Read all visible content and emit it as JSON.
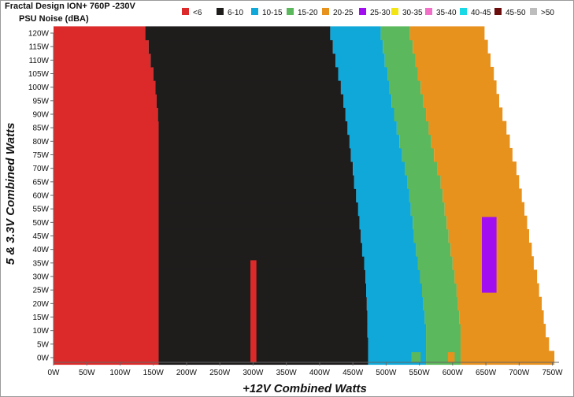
{
  "chart_data": {
    "type": "heatmap",
    "title": "Fractal Design ION+ 760P -230V",
    "subtitle": "PSU Noise (dBA)",
    "xlabel": "+12V Combined Watts",
    "ylabel": "5 & 3.3V Combined Watts",
    "x_unit_label": "W",
    "xlim": [
      0,
      760
    ],
    "ylim": [
      0,
      120
    ],
    "x_ticks": [
      {
        "value": 0,
        "label": "0W"
      },
      {
        "value": 50,
        "label": "50W"
      },
      {
        "value": 100,
        "label": "100W"
      },
      {
        "value": 150,
        "label": "150W"
      },
      {
        "value": 200,
        "label": "200W"
      },
      {
        "value": 250,
        "label": "250W"
      },
      {
        "value": 300,
        "label": "300W"
      },
      {
        "value": 350,
        "label": "350W"
      },
      {
        "value": 400,
        "label": "400W"
      },
      {
        "value": 450,
        "label": "450W"
      },
      {
        "value": 500,
        "label": "500W"
      },
      {
        "value": 550,
        "label": "550W"
      },
      {
        "value": 600,
        "label": "600W"
      },
      {
        "value": 650,
        "label": "650W"
      },
      {
        "value": 700,
        "label": "700W"
      },
      {
        "value": 750,
        "label": "750W"
      }
    ],
    "y_ticks": [
      {
        "value": 0,
        "label": "0W"
      },
      {
        "value": 5,
        "label": "5W"
      },
      {
        "value": 10,
        "label": "10W"
      },
      {
        "value": 15,
        "label": "15W"
      },
      {
        "value": 20,
        "label": "20W"
      },
      {
        "value": 25,
        "label": "25W"
      },
      {
        "value": 30,
        "label": "30W"
      },
      {
        "value": 35,
        "label": "35W"
      },
      {
        "value": 40,
        "label": "40W"
      },
      {
        "value": 45,
        "label": "45W"
      },
      {
        "value": 50,
        "label": "50W"
      },
      {
        "value": 55,
        "label": "55W"
      },
      {
        "value": 60,
        "label": "60W"
      },
      {
        "value": 65,
        "label": "65W"
      },
      {
        "value": 70,
        "label": "70W"
      },
      {
        "value": 75,
        "label": "75W"
      },
      {
        "value": 80,
        "label": "80W"
      },
      {
        "value": 85,
        "label": "85W"
      },
      {
        "value": 90,
        "label": "90W"
      },
      {
        "value": 95,
        "label": "95W"
      },
      {
        "value": 100,
        "label": "100W"
      },
      {
        "value": 105,
        "label": "105W"
      },
      {
        "value": 110,
        "label": "110W"
      },
      {
        "value": 115,
        "label": "115W"
      },
      {
        "value": 120,
        "label": "120W"
      }
    ],
    "legend_position": "top",
    "bands": [
      {
        "label": "<6",
        "color": "#dc2a2a"
      },
      {
        "label": "6-10",
        "color": "#1f1c1c"
      },
      {
        "label": "10-15",
        "color": "#10a8d8"
      },
      {
        "label": "15-20",
        "color": "#5cb85c"
      },
      {
        "label": "20-25",
        "color": "#e8921e"
      },
      {
        "label": "25-30",
        "color": "#a10ef0"
      },
      {
        "label": "30-35",
        "color": "#f2e513"
      },
      {
        "label": "35-40",
        "color": "#f26fc8"
      },
      {
        "label": "40-45",
        "color": "#1ad9e6"
      },
      {
        "label": "45-50",
        "color": "#6b0d0d"
      },
      {
        "label": ">50",
        "color": "#bdbdbd"
      }
    ],
    "y_levels": [
      0,
      5,
      10,
      15,
      20,
      25,
      30,
      35,
      40,
      45,
      50,
      55,
      60,
      65,
      70,
      75,
      80,
      85,
      90,
      95,
      100,
      105,
      110,
      115,
      120
    ],
    "boundaries_note": "per y level: x (W) where each band ends",
    "band_edges": {
      "lt6_end": [
        158,
        158,
        158,
        158,
        158,
        158,
        158,
        158,
        158,
        158,
        158,
        158,
        158,
        158,
        158,
        158,
        158,
        158,
        157,
        155,
        153,
        150,
        146,
        143,
        138
      ],
      "b6_10_end": [
        473,
        473,
        472,
        472,
        471,
        470,
        469,
        467,
        464,
        462,
        460,
        458,
        455,
        452,
        450,
        447,
        445,
        442,
        439,
        436,
        432,
        428,
        424,
        420,
        416
      ],
      "b10_15_end": [
        560,
        560,
        560,
        558,
        556,
        554,
        551,
        548,
        545,
        542,
        540,
        537,
        535,
        532,
        528,
        524,
        520,
        516,
        512,
        508,
        505,
        502,
        498,
        495,
        492
      ],
      "b15_20_end": [
        612,
        612,
        612,
        610,
        608,
        606,
        603,
        600,
        597,
        594,
        591,
        588,
        585,
        582,
        577,
        572,
        568,
        564,
        560,
        556,
        552,
        548,
        544,
        540,
        536
      ],
      "b20_25_end": [
        753,
        745,
        740,
        737,
        734,
        730,
        727,
        722,
        719,
        715,
        712,
        708,
        704,
        700,
        696,
        690,
        686,
        681,
        675,
        670,
        666,
        662,
        657,
        653,
        648
      ]
    },
    "islands": [
      {
        "band": "<6",
        "x_range": [
          296,
          305
        ],
        "y_range": [
          0,
          36
        ]
      },
      {
        "band": "15-20",
        "x_range": [
          538,
          552
        ],
        "y_range": [
          0,
          2
        ]
      },
      {
        "band": "20-25",
        "x_range": [
          593,
          603
        ],
        "y_range": [
          0,
          2
        ]
      },
      {
        "band": "25-30",
        "x_range": [
          644,
          666
        ],
        "y_range": [
          24,
          52
        ]
      }
    ]
  }
}
